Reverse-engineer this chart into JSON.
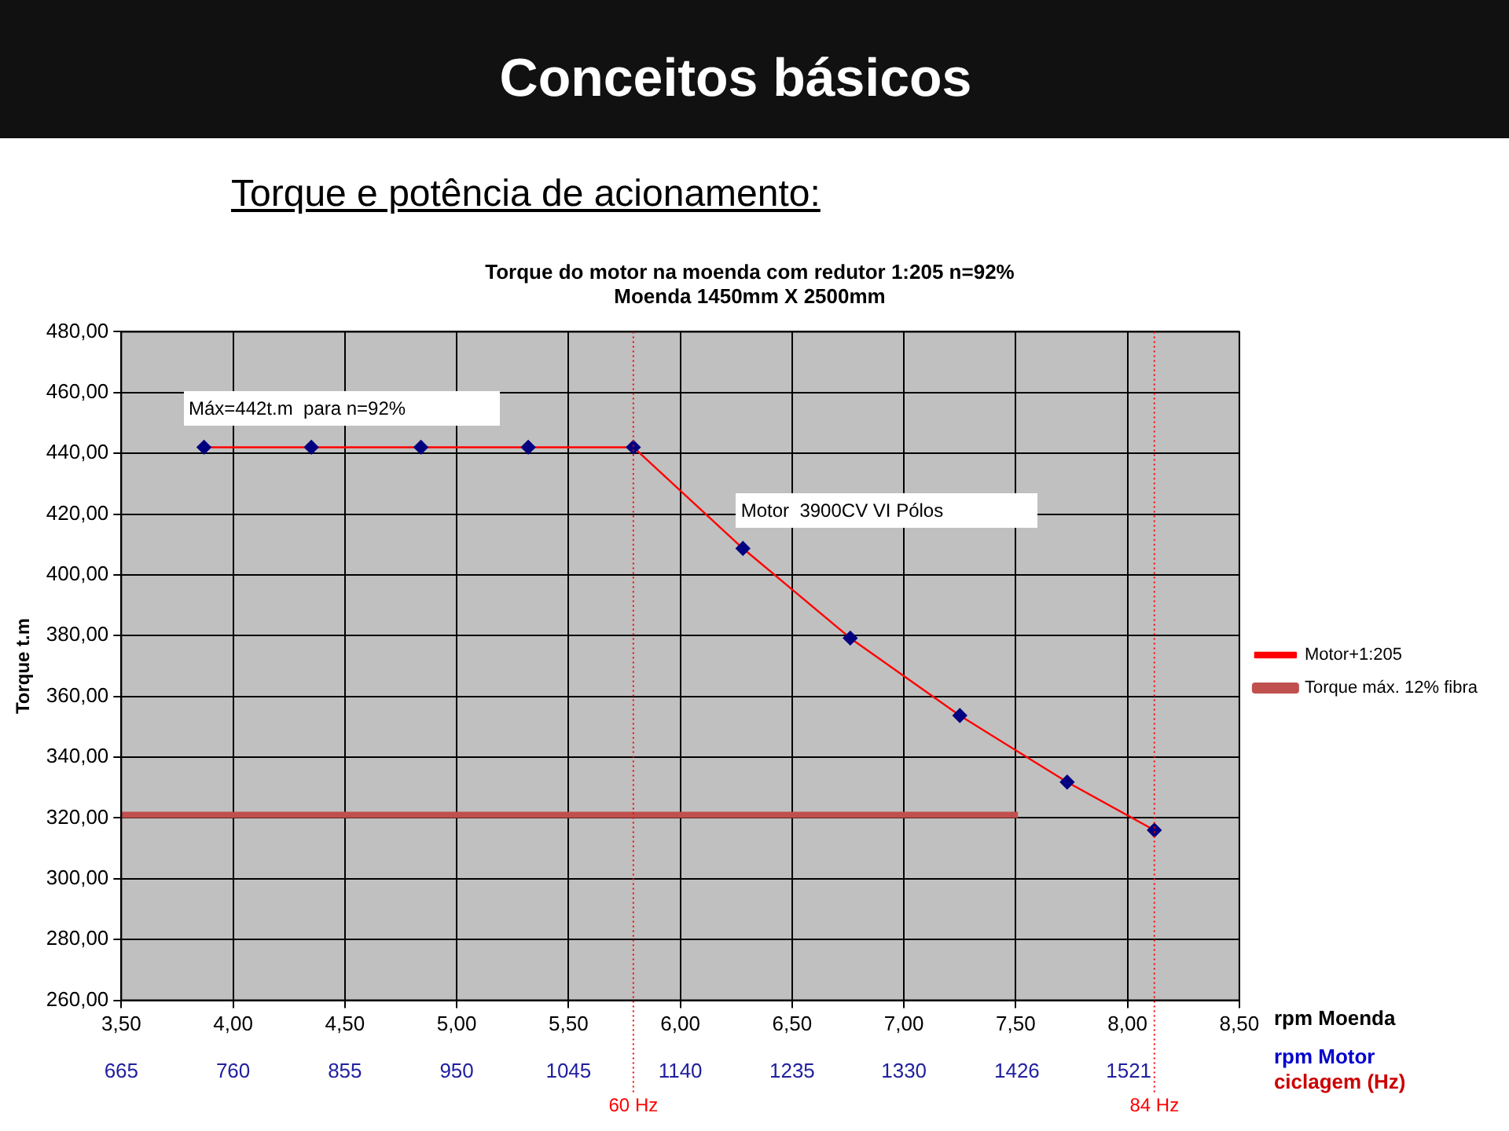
{
  "chart_data": {
    "type": "line",
    "title": "Torque do motor na moenda com redutor 1:205 n=92%",
    "subtitle": "Moenda 1450mm X 2500mm",
    "xlabel": "rpm Moenda",
    "x2label": "rpm Motor",
    "ylabel": "Torque t.m",
    "annotations": [
      "Conceitos básicos",
      "Torque e potência de acionamento:",
      "ciclagem (Hz)",
      "Máx=442t.m  para n=92%",
      "Motor  3900CV VI Pólos"
    ],
    "series": [
      {
        "name": "Motor+1:205",
        "color": "#ff0000",
        "colors": [
          "#000080",
          "#000080",
          "#000080",
          "#000080",
          "#000080",
          "#000080",
          "#000080",
          "#000080",
          "#000080",
          "#000080"
        ],
        "marker": "diamond",
        "x": [
          3.87,
          4.35,
          4.84,
          5.32,
          5.79,
          6.28,
          6.76,
          7.25,
          7.73,
          8.12
        ],
        "values": [
          442,
          442,
          442,
          442,
          442,
          408.7,
          379.2,
          353.7,
          331.8,
          316
        ]
      },
      {
        "name": "Torque máx. 12% fibra",
        "color": "#c0504d",
        "marker": "none",
        "x": [
          3.5,
          7.51
        ],
        "values": [
          321,
          321
        ]
      }
    ],
    "xlim": [
      3.5,
      8.5
    ],
    "xticks": [
      {
        "value": 3.5,
        "label": "3,50"
      },
      {
        "value": 4,
        "label": "4,00"
      },
      {
        "value": 4.5,
        "label": "4,50"
      },
      {
        "value": 5,
        "label": "5,00"
      },
      {
        "value": 5.5,
        "label": "5,50"
      },
      {
        "value": 6,
        "label": "6,00"
      },
      {
        "value": 6.5,
        "label": "6,50"
      },
      {
        "value": 7,
        "label": "7,00"
      },
      {
        "value": 7.5,
        "label": "7,50"
      },
      {
        "value": 8,
        "label": "8,00"
      },
      {
        "value": 8.5,
        "label": "8,50"
      }
    ],
    "x2lim": [
      665,
      1615
    ],
    "x2ticks": [
      665,
      760,
      855,
      950,
      1045,
      1140,
      1235,
      1330,
      1426,
      1521
    ],
    "ylim": [
      260,
      480
    ],
    "yticks": [
      {
        "value": 260,
        "label": "260,00"
      },
      {
        "value": 280,
        "label": "280,00"
      },
      {
        "value": 300,
        "label": "300,00"
      },
      {
        "value": 320,
        "label": "320,00"
      },
      {
        "value": 340,
        "label": "340,00"
      },
      {
        "value": 360,
        "label": "360,00"
      },
      {
        "value": 380,
        "label": "380,00"
      },
      {
        "value": 400,
        "label": "400,00"
      },
      {
        "value": 420,
        "label": "420,00"
      },
      {
        "value": 440,
        "label": "440,00"
      },
      {
        "value": 460,
        "label": "460,00"
      },
      {
        "value": 480,
        "label": "480,00"
      }
    ],
    "ref_lines": [
      {
        "axis": "x",
        "value": 5.79,
        "label": "60 Hz",
        "color": "#ff0000",
        "line_style": "dotted"
      },
      {
        "axis": "x",
        "value": 8.12,
        "label": "84 Hz",
        "color": "#ff0000",
        "line_style": "dotted"
      }
    ],
    "grid": true,
    "legend": "right"
  }
}
